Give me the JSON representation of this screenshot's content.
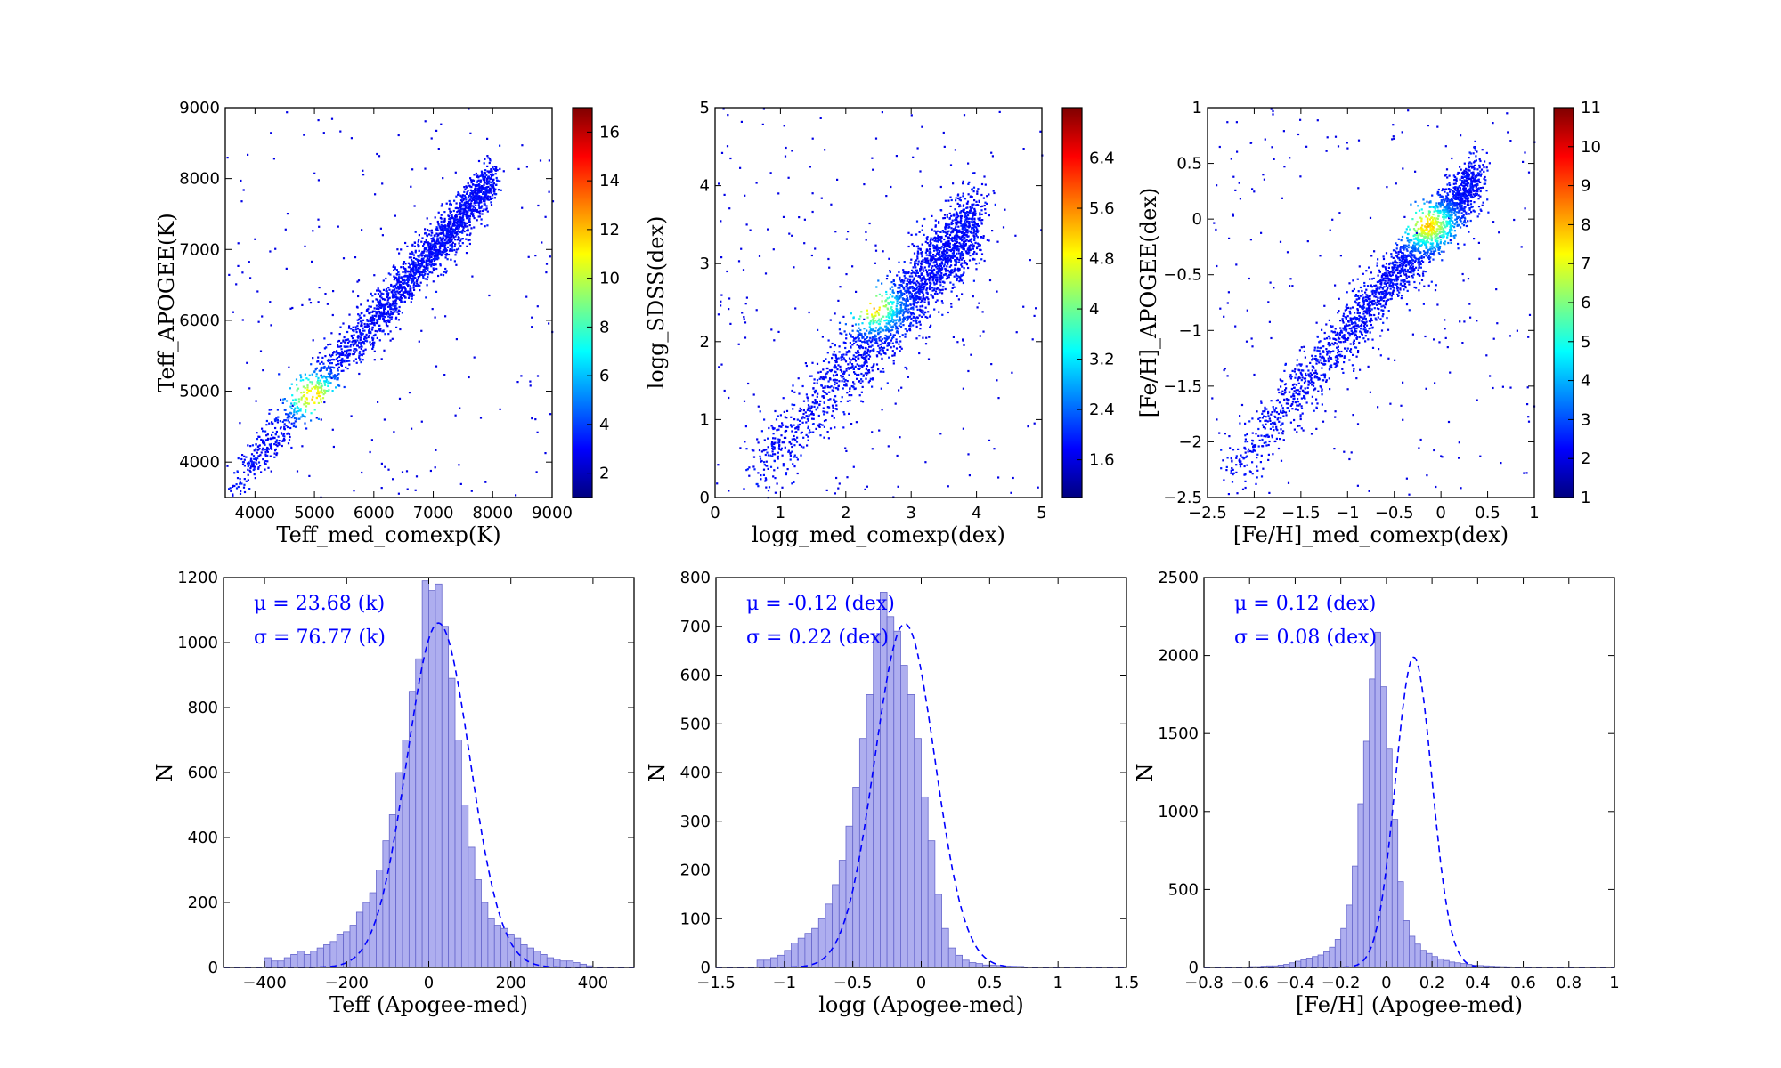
{
  "figure": {
    "colorscale": [
      "#00007f",
      "#0000ff",
      "#007fff",
      "#00ffff",
      "#7fff7f",
      "#ffff00",
      "#ff7f00",
      "#ff0000",
      "#7f0000"
    ],
    "point_color_low": "#00007f",
    "hist_fill": "#aaaaee",
    "hist_edge": "#6666cc",
    "fit_color": "#0000ff"
  },
  "chart_data": [
    {
      "type": "scatter",
      "density_colored": true,
      "xlabel": "Teff_med_comexp(K)",
      "ylabel": "Teff_APOGEE(K)",
      "xlim": [
        3500,
        9000
      ],
      "ylim": [
        3500,
        9000
      ],
      "xticks": [
        4000,
        5000,
        6000,
        7000,
        8000,
        9000
      ],
      "yticks": [
        4000,
        5000,
        6000,
        7000,
        8000,
        9000
      ],
      "colorbar": {
        "range": [
          1,
          17
        ],
        "ticks": [
          2,
          4,
          6,
          8,
          10,
          12,
          14,
          16
        ]
      },
      "trend": {
        "x": [
          3600,
          8000
        ],
        "y": [
          3700,
          8000
        ],
        "scatter_y": 150
      },
      "peak": [
        4950,
        4950
      ]
    },
    {
      "type": "scatter",
      "density_colored": true,
      "xlabel": "logg_med_comexp(dex)",
      "ylabel": "logg_SDSS(dex)",
      "xlim": [
        0,
        5
      ],
      "ylim": [
        0,
        5
      ],
      "xticks": [
        0,
        1,
        2,
        3,
        4,
        5
      ],
      "yticks": [
        0,
        1,
        2,
        3,
        4,
        5
      ],
      "colorbar": {
        "range": [
          1,
          7.2
        ],
        "ticks": [
          1.6,
          2.4,
          3.2,
          4.0,
          4.8,
          5.6,
          6.4
        ]
      },
      "trend": {
        "x": [
          0.6,
          4.0
        ],
        "y": [
          0.3,
          3.6
        ],
        "scatter_y": 0.22
      },
      "peak": [
        2.4,
        2.45
      ]
    },
    {
      "type": "scatter",
      "density_colored": true,
      "xlabel": "[Fe/H]_med_comexp(dex)",
      "ylabel": "[Fe/H]_APOGEE(dex)",
      "xlim": [
        -2.5,
        1.0
      ],
      "ylim": [
        -2.5,
        1.0
      ],
      "xticks": [
        -2.5,
        -2.0,
        -1.5,
        -1.0,
        -0.5,
        0.0,
        0.5,
        1.0
      ],
      "yticks": [
        -2.5,
        -2.0,
        -1.5,
        -1.0,
        -0.5,
        0.0,
        0.5,
        1.0
      ],
      "colorbar": {
        "range": [
          1,
          11
        ],
        "ticks": [
          1,
          2,
          3,
          4,
          5,
          6,
          7,
          8,
          9,
          10,
          11
        ]
      },
      "trend": {
        "x": [
          -2.3,
          0.4
        ],
        "y": [
          -2.3,
          0.4
        ],
        "scatter_y": 0.12
      },
      "peak": [
        -0.15,
        -0.05
      ]
    },
    {
      "type": "histogram",
      "xlabel": "Teff (Apogee-med)",
      "ylabel": "N",
      "xlim": [
        -500,
        500
      ],
      "ylim": [
        0,
        1200
      ],
      "xticks": [
        -400,
        -200,
        0,
        200,
        400
      ],
      "yticks": [
        0,
        200,
        400,
        600,
        800,
        1000,
        1200
      ],
      "annotations": [
        "μ = 23.68 (k)",
        "σ = 76.77 (k)"
      ],
      "fit": {
        "mu": 23.68,
        "sigma": 76.77,
        "amplitude": 1060
      },
      "bins": {
        "start": -400,
        "width": 16,
        "counts": [
          30,
          20,
          20,
          30,
          40,
          50,
          40,
          50,
          60,
          70,
          80,
          100,
          110,
          130,
          170,
          200,
          230,
          300,
          390,
          470,
          600,
          700,
          850,
          950,
          1190,
          1160,
          1180,
          1050,
          890,
          700,
          500,
          370,
          270,
          200,
          150,
          130,
          120,
          100,
          90,
          70,
          60,
          50,
          40,
          30,
          25,
          20,
          20,
          15,
          10,
          5
        ]
      }
    },
    {
      "type": "histogram",
      "xlabel": "logg (Apogee-med)",
      "ylabel": "N",
      "xlim": [
        -1.5,
        1.5
      ],
      "ylim": [
        0,
        800
      ],
      "xticks": [
        -1.5,
        -1.0,
        -0.5,
        0.0,
        0.5,
        1.0,
        1.5
      ],
      "yticks": [
        0,
        100,
        200,
        300,
        400,
        500,
        600,
        700,
        800
      ],
      "annotations": [
        "μ = -0.12 (dex)",
        "σ = 0.22 (dex)"
      ],
      "fit": {
        "mu": -0.12,
        "sigma": 0.22,
        "amplitude": 705
      },
      "bins": {
        "start": -1.2,
        "width": 0.05,
        "counts": [
          15,
          15,
          20,
          25,
          35,
          50,
          60,
          70,
          80,
          100,
          130,
          170,
          220,
          290,
          370,
          470,
          560,
          680,
          770,
          720,
          690,
          620,
          560,
          470,
          350,
          260,
          150,
          80,
          40,
          25,
          15,
          10,
          8,
          5,
          5,
          4,
          3,
          2,
          2,
          1,
          1,
          1,
          1,
          1,
          1,
          1,
          1,
          1
        ]
      }
    },
    {
      "type": "histogram",
      "xlabel": "[Fe/H] (Apogee-med)",
      "ylabel": "N",
      "xlim": [
        -0.8,
        1.0
      ],
      "ylim": [
        0,
        2500
      ],
      "xticks": [
        -0.8,
        -0.6,
        -0.4,
        -0.2,
        0.0,
        0.2,
        0.4,
        0.6,
        0.8,
        1.0
      ],
      "yticks": [
        0,
        500,
        1000,
        1500,
        2000,
        2500
      ],
      "annotations": [
        "μ = 0.12 (dex)",
        "σ = 0.08 (dex)"
      ],
      "fit": {
        "mu": 0.12,
        "sigma": 0.08,
        "amplitude": 1990
      },
      "bins": {
        "start": -0.6,
        "width": 0.025,
        "counts": [
          5,
          5,
          8,
          10,
          10,
          15,
          20,
          30,
          40,
          50,
          60,
          70,
          80,
          100,
          130,
          180,
          250,
          400,
          650,
          1050,
          1450,
          1850,
          2150,
          1800,
          1400,
          950,
          550,
          300,
          200,
          150,
          110,
          90,
          70,
          55,
          45,
          35,
          30,
          25,
          20,
          15,
          12,
          10,
          8,
          6,
          5,
          4,
          3,
          2
        ]
      }
    }
  ]
}
